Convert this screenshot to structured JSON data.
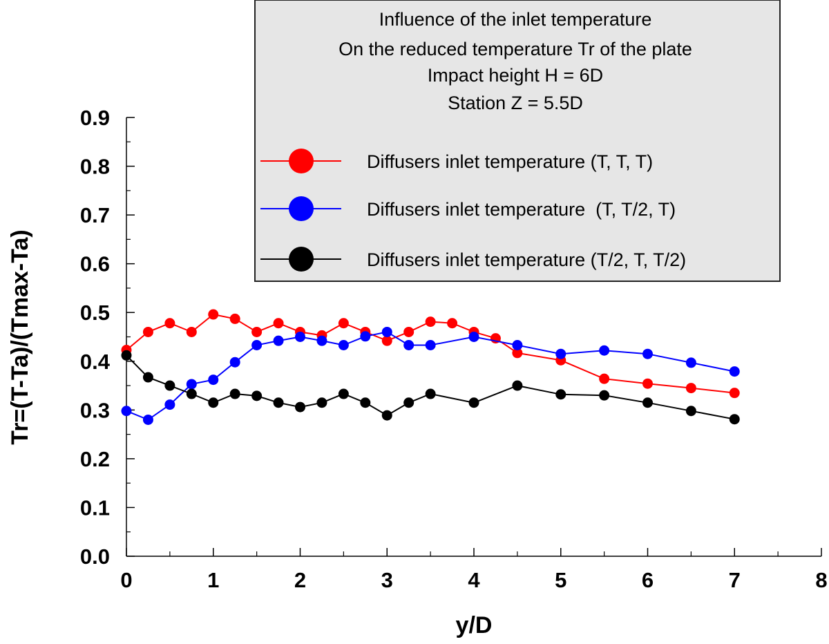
{
  "chart_data": {
    "type": "line",
    "title_lines": [
      "Influence of the inlet temperature",
      "On the reduced temperature Tr of the plate",
      "Impact height H = 6D",
      "Station Z = 5.5D"
    ],
    "xlabel": "y/D",
    "ylabel": "Tr=(T-Ta)/(Tmax-Ta)",
    "xlim": [
      0,
      8
    ],
    "ylim": [
      0,
      0.9
    ],
    "xticks": [
      0,
      1,
      2,
      3,
      4,
      5,
      6,
      7,
      8
    ],
    "xtick_labels": [
      "0",
      "1",
      "2",
      "3",
      "4",
      "5",
      "6",
      "7",
      "8"
    ],
    "yticks": [
      0,
      0.1,
      0.2,
      0.3,
      0.4,
      0.5,
      0.6,
      0.7,
      0.8,
      0.9
    ],
    "ytick_labels": [
      "0.0",
      "0.1",
      "0.2",
      "0.3",
      "0.4",
      "0.5",
      "0.6",
      "0.7",
      "0.8",
      "0.9"
    ],
    "grid": false,
    "legend_position": "top-right",
    "series": [
      {
        "name": "Diffusers inlet temperature (T, T, T)",
        "color": "#ff0000",
        "x": [
          0,
          0.25,
          0.5,
          0.75,
          1,
          1.25,
          1.5,
          1.75,
          2,
          2.25,
          2.5,
          2.75,
          3,
          3.25,
          3.5,
          3.75,
          4,
          4.25,
          4.5,
          5,
          5.5,
          6,
          6.5,
          7
        ],
        "y": [
          0.423,
          0.46,
          0.478,
          0.46,
          0.496,
          0.487,
          0.46,
          0.478,
          0.46,
          0.453,
          0.478,
          0.46,
          0.442,
          0.46,
          0.481,
          0.478,
          0.46,
          0.447,
          0.417,
          0.402,
          0.364,
          0.354,
          0.345,
          0.335
        ]
      },
      {
        "name": "Diffusers inlet temperature  (T, T/2, T)",
        "color": "#0000ff",
        "x": [
          0,
          0.25,
          0.5,
          0.75,
          1,
          1.25,
          1.5,
          1.75,
          2,
          2.25,
          2.5,
          2.75,
          3,
          3.25,
          3.5,
          4,
          4.5,
          5,
          5.5,
          6,
          6.5,
          7
        ],
        "y": [
          0.298,
          0.28,
          0.311,
          0.353,
          0.362,
          0.398,
          0.433,
          0.442,
          0.45,
          0.442,
          0.433,
          0.451,
          0.46,
          0.433,
          0.433,
          0.45,
          0.433,
          0.415,
          0.422,
          0.415,
          0.397,
          0.379
        ]
      },
      {
        "name": "Diffusers inlet temperature (T/2, T, T/2)",
        "color": "#000000",
        "x": [
          0,
          0.25,
          0.5,
          0.75,
          1,
          1.25,
          1.5,
          1.75,
          2,
          2.25,
          2.5,
          2.75,
          3,
          3.25,
          3.5,
          4,
          4.5,
          5,
          5.5,
          6,
          6.5,
          7
        ],
        "y": [
          0.412,
          0.367,
          0.35,
          0.333,
          0.315,
          0.333,
          0.329,
          0.315,
          0.306,
          0.315,
          0.333,
          0.315,
          0.289,
          0.315,
          0.333,
          0.315,
          0.35,
          0.332,
          0.33,
          0.315,
          0.298,
          0.281
        ]
      }
    ]
  }
}
